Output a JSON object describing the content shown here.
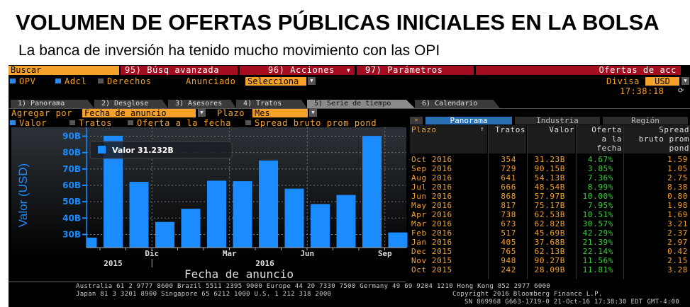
{
  "headline": {
    "title": "VOLUMEN DE OFERTAS PÚBLICAS INICIALES EN LA BOLSA",
    "subtitle": "La banca de inversión  ha tenido mucho movimiento con las OPI"
  },
  "toolbar": {
    "search": "Buscar",
    "advanced": "95) Búsq avanzada",
    "actions": "96) Acciones",
    "actions_arrow": "▾",
    "params": "97) Parámetros",
    "screen": "Ofertas de acc"
  },
  "filters": {
    "opv": "OPV",
    "adcl": "Adcl",
    "derechos": "Derechos",
    "announced_label": "Anunciado",
    "announced_value": "Selecciona",
    "currency_label": "Divisa",
    "currency_value": "USD",
    "time": "17:38:18"
  },
  "tabs": [
    "1) Panorama",
    "2) Desglose",
    "3) Asesores",
    "4) Tratos",
    "5) Serie de tiempo",
    "6) Calendario"
  ],
  "chart_controls": {
    "group_label": "Agregar por",
    "group_value": "Fecha de anuncio",
    "period_label": "Plazo",
    "period_value": "Mes",
    "series_toggles": [
      "Valor",
      "Tratos",
      "Oferta a la fecha",
      "Spread bruto prom pond"
    ]
  },
  "colors": {
    "bar": "#1a8cff",
    "orange": "#f6a12a",
    "red": "#a30d1f",
    "green": "#3ad23a"
  },
  "chart_data": {
    "type": "bar",
    "categories": [
      "Oct 2015",
      "Nov 2015",
      "Dec 2015",
      "Jan 2016",
      "Feb 2016",
      "Mar 2016",
      "Apr 2016",
      "May 2016",
      "Jun 2016",
      "Jul 2016",
      "Aug 2016",
      "Sep 2016",
      "Oct 2016"
    ],
    "values": [
      28.09,
      90.27,
      62.13,
      37.68,
      45.69,
      62.82,
      62.53,
      75.17,
      57.97,
      48.54,
      54.13,
      90.15,
      31.23
    ],
    "ylabel": "Valor (USD)",
    "xlabel": "Fecha de anuncio",
    "yticks": [
      "30B",
      "40B",
      "50B",
      "60B",
      "70B",
      "80B",
      "90B"
    ],
    "ytick_values": [
      30,
      40,
      50,
      60,
      70,
      80,
      90
    ],
    "ylim": [
      22,
      95.4
    ],
    "xtick_labels": [
      {
        "label": "Dic",
        "index": 2.5
      },
      {
        "label": "Mar",
        "index": 5.5
      },
      {
        "label": "Jun",
        "index": 8.5
      },
      {
        "label": "Sep",
        "index": 11.5
      }
    ],
    "year_labels": [
      {
        "label": "2015",
        "index": 1
      },
      {
        "label": "2016",
        "index": 7
      }
    ],
    "legend": {
      "label": "Valor",
      "value": "31.232B",
      "placement": "top-left"
    },
    "grid": true
  },
  "panel": {
    "toggle": "»",
    "tabs": [
      "Panorama",
      "Industria",
      "Región"
    ],
    "headers": [
      "Plazo",
      "Tratos",
      "Valor",
      "Oferta a la fecha",
      "Spread bruto prom pond"
    ],
    "rows": [
      [
        "Oct 2016",
        "354",
        "31.23B",
        "4.67%",
        "1.59"
      ],
      [
        "Sep 2016",
        "729",
        "90.15B",
        "3.85%",
        "1.05"
      ],
      [
        "Aug 2016",
        "641",
        "54.13B",
        "7.36%",
        "2.75"
      ],
      [
        "Jul 2016",
        "666",
        "48.54B",
        "8.99%",
        "8.38"
      ],
      [
        "Jun 2016",
        "868",
        "57.97B",
        "10.00%",
        "0.80"
      ],
      [
        "May 2016",
        "817",
        "75.17B",
        "7.95%",
        "1.98"
      ],
      [
        "Apr 2016",
        "738",
        "62.53B",
        "10.51%",
        "1.69"
      ],
      [
        "Mar 2016",
        "673",
        "62.82B",
        "30.57%",
        "3.21"
      ],
      [
        "Feb 2016",
        "517",
        "45.69B",
        "42.29%",
        "2.37"
      ],
      [
        "Jan 2016",
        "405",
        "37.68B",
        "21.39%",
        "2.97"
      ],
      [
        "Dec 2015",
        "765",
        "62.13B",
        "22.14%",
        "0.42"
      ],
      [
        "Nov 2015",
        "948",
        "90.27B",
        "11.56%",
        "2.15"
      ],
      [
        "Oct 2015",
        "242",
        "28.09B",
        "11.81%",
        "3.28"
      ]
    ]
  },
  "footer": {
    "line1": "Australia 61 2 9777 8600 Brazil 5511 2395 9000 Europe 44 20 7330 7500 Germany 49 69 9204 1210 Hong Kong 852 2977 6000",
    "line2a": "Japan 81 3 3201 8900        Singapore 65 6212 1000       U.S. 1 212 318 2000",
    "line2b": "Copyright 2016 Bloomberg Finance L.P.",
    "line3": "SN 869968 G663-1719-0 21-Oct-16 17:38:30 EDT  GMT-4:00"
  }
}
